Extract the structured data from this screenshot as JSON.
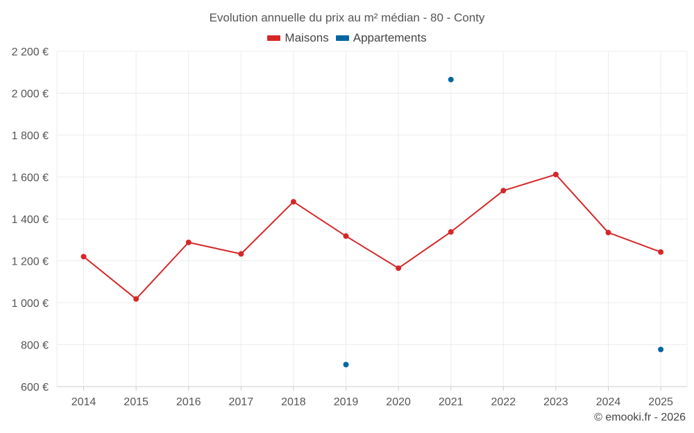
{
  "chart_data": {
    "type": "line",
    "title": "Evolution annuelle du prix au m² médian - 80 - Conty",
    "categories": [
      "2014",
      "2015",
      "2016",
      "2017",
      "2018",
      "2019",
      "2020",
      "2021",
      "2022",
      "2023",
      "2024",
      "2025"
    ],
    "series": [
      {
        "name": "Maisons",
        "color": "#d62728",
        "values": [
          1220,
          1018,
          1288,
          1233,
          1482,
          1318,
          1165,
          1338,
          1535,
          1612,
          1335,
          1242
        ]
      },
      {
        "name": "Appartements",
        "color": "#0066a1",
        "values": [
          null,
          null,
          null,
          null,
          null,
          705,
          null,
          2065,
          null,
          null,
          null,
          777
        ]
      }
    ],
    "ylim": [
      600,
      2200
    ],
    "yticks": [
      600,
      800,
      1000,
      1200,
      1400,
      1600,
      1800,
      2000,
      2200
    ],
    "ytick_labels": [
      "600 €",
      "800 €",
      "1 000 €",
      "1 200 €",
      "1 400 €",
      "1 600 €",
      "1 800 €",
      "2 000 €",
      "2 200 €"
    ],
    "xlabel": "",
    "ylabel": "",
    "grid": true,
    "legend_position": "top-center"
  },
  "legend": {
    "maisons_label": "Maisons",
    "appartements_label": "Appartements"
  },
  "credit": "© emooki.fr - 2026"
}
